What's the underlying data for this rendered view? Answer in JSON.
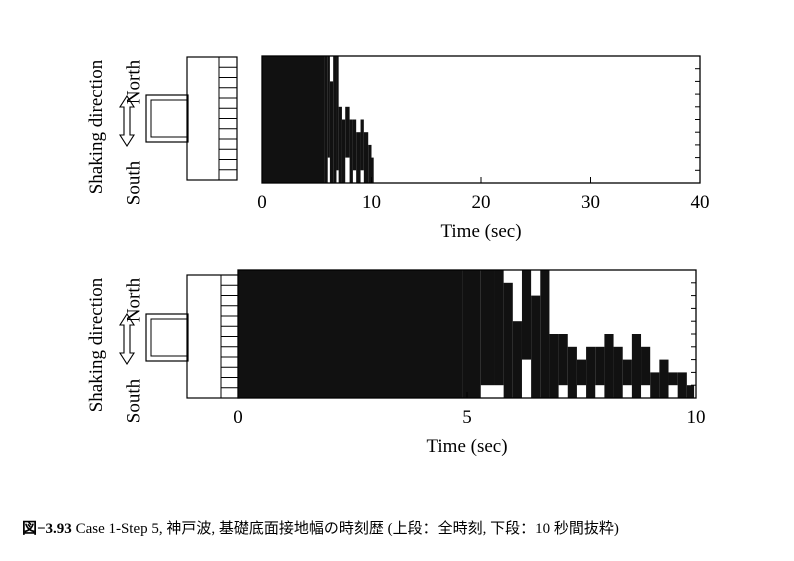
{
  "chart_data": [
    {
      "type": "area",
      "xlabel": "Time (sec)",
      "xlim": [
        0,
        40
      ],
      "xticks": [
        0,
        10,
        20,
        30,
        40
      ],
      "ylim": [
        0,
        10
      ],
      "side_labels": {
        "direction": "Shaking direction",
        "north": "North",
        "south": "South"
      },
      "grid": false,
      "series": [
        {
          "x": [
            0,
            5.7,
            6.0,
            6.2,
            6.5,
            6.8,
            7.0,
            7.3,
            7.6,
            8.0,
            8.3,
            8.6,
            9.0,
            9.3,
            9.7,
            10.0
          ],
          "north": [
            10,
            10,
            10,
            8,
            10,
            10,
            6,
            5,
            6,
            5,
            5,
            4,
            5,
            4,
            3,
            2
          ],
          "south": [
            0,
            0,
            2,
            0,
            0,
            1,
            0,
            0,
            2,
            0,
            1,
            0,
            1,
            0,
            0,
            0
          ]
        }
      ]
    },
    {
      "type": "area",
      "xlabel": "Time (sec)",
      "xlim": [
        0,
        10
      ],
      "xticks": [
        0,
        5,
        10
      ],
      "ylim": [
        0,
        10
      ],
      "side_labels": {
        "direction": "Shaking direction",
        "north": "North",
        "south": "South"
      },
      "grid": false,
      "series": [
        {
          "x": [
            0,
            4.9,
            5.3,
            5.6,
            5.8,
            6.0,
            6.2,
            6.4,
            6.6,
            6.8,
            7.0,
            7.2,
            7.4,
            7.6,
            7.8,
            8.0,
            8.2,
            8.4,
            8.6,
            8.8,
            9.0,
            9.2,
            9.4,
            9.6,
            9.8
          ],
          "north": [
            10,
            10,
            10,
            10,
            9,
            6,
            10,
            8,
            10,
            5,
            5,
            4,
            3,
            4,
            4,
            5,
            4,
            3,
            5,
            4,
            2,
            3,
            2,
            2,
            1
          ],
          "south": [
            0,
            0,
            1,
            1,
            0,
            0,
            3,
            0,
            0,
            0,
            1,
            0,
            1,
            0,
            1,
            0,
            0,
            1,
            0,
            1,
            0,
            0,
            1,
            0,
            0
          ]
        }
      ]
    }
  ],
  "caption": {
    "figure_number": "図−3.93",
    "text": " Case 1-Step 5, 神戸波, 基礎底面接地幅の時刻歴 (上段：全時刻,  下段：10 秒間抜粋)"
  }
}
